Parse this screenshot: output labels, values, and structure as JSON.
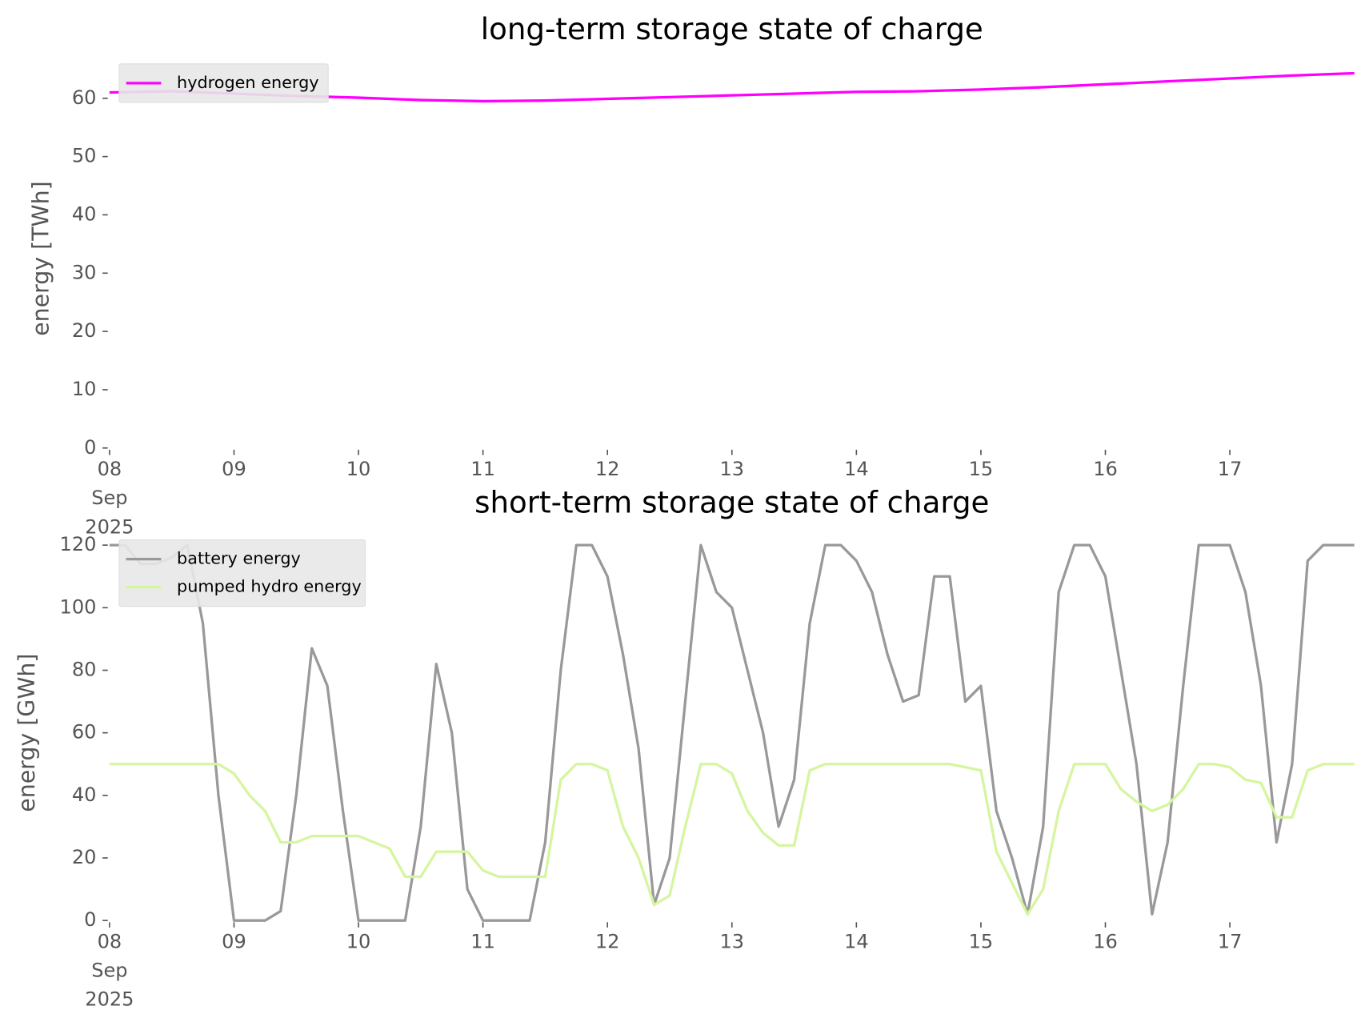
{
  "chart_data": [
    {
      "type": "line",
      "title": "long-term storage state of charge",
      "ylabel": "energy [TWh]",
      "legend": "upper left",
      "x": [
        "2025-09-08T00:00",
        "2025-09-08T12:00",
        "2025-09-09T00:00",
        "2025-09-09T12:00",
        "2025-09-10T00:00",
        "2025-09-10T12:00",
        "2025-09-11T00:00",
        "2025-09-11T12:00",
        "2025-09-12T00:00",
        "2025-09-12T12:00",
        "2025-09-13T00:00",
        "2025-09-13T12:00",
        "2025-09-14T00:00",
        "2025-09-14T12:00",
        "2025-09-15T00:00",
        "2025-09-15T12:00",
        "2025-09-16T00:00",
        "2025-09-16T12:00",
        "2025-09-17T00:00",
        "2025-09-17T12:00",
        "2025-09-18T00:00"
      ],
      "series": [
        {
          "name": "hydrogen energy",
          "color": "#ff00ff",
          "values": [
            61,
            61.2,
            60.8,
            60.4,
            60.1,
            59.7,
            59.5,
            59.6,
            59.9,
            60.2,
            60.5,
            60.8,
            61.1,
            61.2,
            61.5,
            61.9,
            62.4,
            62.9,
            63.4,
            63.9,
            64.3
          ]
        }
      ],
      "xlim": [
        "2025-09-08T00:00",
        "2025-09-18T00:00"
      ],
      "xticks": [
        {
          "value": "2025-09-08T00:00",
          "label": "08\nSep\n2025"
        },
        {
          "value": "2025-09-09T00:00",
          "label": "09"
        },
        {
          "value": "2025-09-10T00:00",
          "label": "10"
        },
        {
          "value": "2025-09-11T00:00",
          "label": "11"
        },
        {
          "value": "2025-09-12T00:00",
          "label": "12"
        },
        {
          "value": "2025-09-13T00:00",
          "label": "13"
        },
        {
          "value": "2025-09-14T00:00",
          "label": "14"
        },
        {
          "value": "2025-09-15T00:00",
          "label": "15"
        },
        {
          "value": "2025-09-16T00:00",
          "label": "16"
        },
        {
          "value": "2025-09-17T00:00",
          "label": "17"
        }
      ],
      "ylim": [
        0,
        65
      ],
      "yticks": [
        0,
        10,
        20,
        30,
        40,
        50,
        60
      ]
    },
    {
      "type": "line",
      "title": "short-term storage state of charge",
      "ylabel": "energy [GWh]",
      "legend": "upper left",
      "x": [
        "2025-09-08T00:00",
        "2025-09-08T03:00",
        "2025-09-08T06:00",
        "2025-09-08T09:00",
        "2025-09-08T12:00",
        "2025-09-08T15:00",
        "2025-09-08T18:00",
        "2025-09-08T21:00",
        "2025-09-09T00:00",
        "2025-09-09T03:00",
        "2025-09-09T06:00",
        "2025-09-09T09:00",
        "2025-09-09T12:00",
        "2025-09-09T15:00",
        "2025-09-09T18:00",
        "2025-09-09T21:00",
        "2025-09-10T00:00",
        "2025-09-10T03:00",
        "2025-09-10T06:00",
        "2025-09-10T09:00",
        "2025-09-10T12:00",
        "2025-09-10T15:00",
        "2025-09-10T18:00",
        "2025-09-10T21:00",
        "2025-09-11T00:00",
        "2025-09-11T03:00",
        "2025-09-11T06:00",
        "2025-09-11T09:00",
        "2025-09-11T12:00",
        "2025-09-11T15:00",
        "2025-09-11T18:00",
        "2025-09-11T21:00",
        "2025-09-12T00:00",
        "2025-09-12T03:00",
        "2025-09-12T06:00",
        "2025-09-12T09:00",
        "2025-09-12T12:00",
        "2025-09-12T15:00",
        "2025-09-12T18:00",
        "2025-09-12T21:00",
        "2025-09-13T00:00",
        "2025-09-13T03:00",
        "2025-09-13T06:00",
        "2025-09-13T09:00",
        "2025-09-13T12:00",
        "2025-09-13T15:00",
        "2025-09-13T18:00",
        "2025-09-13T21:00",
        "2025-09-14T00:00",
        "2025-09-14T03:00",
        "2025-09-14T06:00",
        "2025-09-14T09:00",
        "2025-09-14T12:00",
        "2025-09-14T15:00",
        "2025-09-14T18:00",
        "2025-09-14T21:00",
        "2025-09-15T00:00",
        "2025-09-15T03:00",
        "2025-09-15T06:00",
        "2025-09-15T09:00",
        "2025-09-15T12:00",
        "2025-09-15T15:00",
        "2025-09-15T18:00",
        "2025-09-15T21:00",
        "2025-09-16T00:00",
        "2025-09-16T03:00",
        "2025-09-16T06:00",
        "2025-09-16T09:00",
        "2025-09-16T12:00",
        "2025-09-16T15:00",
        "2025-09-16T18:00",
        "2025-09-16T21:00",
        "2025-09-17T00:00",
        "2025-09-17T03:00",
        "2025-09-17T06:00",
        "2025-09-17T09:00",
        "2025-09-17T12:00",
        "2025-09-17T15:00",
        "2025-09-17T18:00",
        "2025-09-17T21:00",
        "2025-09-18T00:00"
      ],
      "series": [
        {
          "name": "battery energy",
          "color": "#999999",
          "values": [
            120,
            120,
            114,
            114,
            116,
            120,
            95,
            40,
            0,
            0,
            0,
            3,
            40,
            87,
            75,
            35,
            0,
            0,
            0,
            0,
            30,
            82,
            60,
            10,
            0,
            0,
            0,
            0,
            25,
            80,
            120,
            120,
            110,
            85,
            55,
            5,
            20,
            70,
            120,
            105,
            100,
            80,
            60,
            30,
            45,
            95,
            120,
            120,
            115,
            105,
            85,
            70,
            72,
            110,
            110,
            70,
            75,
            35,
            20,
            2,
            30,
            105,
            120,
            120,
            110,
            80,
            50,
            2,
            25,
            75,
            120,
            120,
            120,
            105,
            75,
            25,
            50,
            115,
            120,
            120,
            120
          ]
        },
        {
          "name": "pumped hydro energy",
          "color": "#d6f5a0",
          "values": [
            50,
            50,
            50,
            50,
            50,
            50,
            50,
            50,
            47,
            40,
            35,
            25,
            25,
            27,
            27,
            27,
            27,
            25,
            23,
            14,
            14,
            22,
            22,
            22,
            16,
            14,
            14,
            14,
            14,
            45,
            50,
            50,
            48,
            30,
            20,
            5,
            8,
            30,
            50,
            50,
            47,
            35,
            28,
            24,
            24,
            48,
            50,
            50,
            50,
            50,
            50,
            50,
            50,
            50,
            50,
            49,
            48,
            22,
            12,
            2,
            10,
            35,
            50,
            50,
            50,
            42,
            38,
            35,
            37,
            42,
            50,
            50,
            49,
            45,
            44,
            33,
            33,
            48,
            50,
            50,
            50
          ]
        }
      ],
      "xlim": [
        "2025-09-08T00:00",
        "2025-09-18T00:00"
      ],
      "xticks": [
        {
          "value": "2025-09-08T00:00",
          "label": "08\nSep\n2025"
        },
        {
          "value": "2025-09-09T00:00",
          "label": "09"
        },
        {
          "value": "2025-09-10T00:00",
          "label": "10"
        },
        {
          "value": "2025-09-11T00:00",
          "label": "11"
        },
        {
          "value": "2025-09-12T00:00",
          "label": "12"
        },
        {
          "value": "2025-09-13T00:00",
          "label": "13"
        },
        {
          "value": "2025-09-14T00:00",
          "label": "14"
        },
        {
          "value": "2025-09-15T00:00",
          "label": "15"
        },
        {
          "value": "2025-09-16T00:00",
          "label": "16"
        },
        {
          "value": "2025-09-17T00:00",
          "label": "17"
        }
      ],
      "ylim": [
        0,
        120
      ],
      "yticks": [
        0,
        20,
        40,
        60,
        80,
        100,
        120
      ]
    }
  ]
}
